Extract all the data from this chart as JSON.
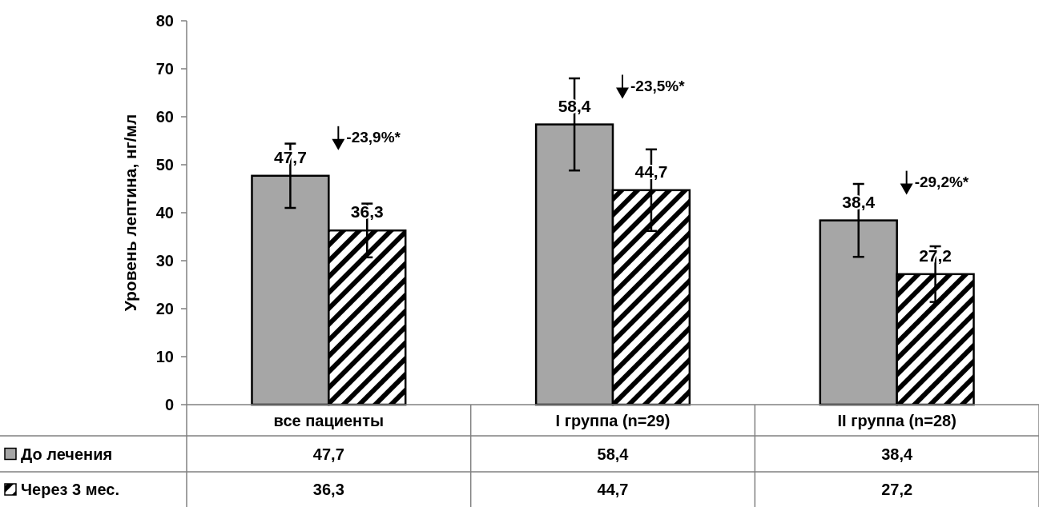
{
  "chart_data": {
    "type": "bar",
    "ylabel": "Уровень лептина, нг/мл",
    "categories": [
      "все пациенты",
      "I группа (n=29)",
      "II группа (n=28)"
    ],
    "series": [
      {
        "name": "До лечения",
        "color": "#a6a6a6",
        "values": [
          47.7,
          58.4,
          38.4
        ],
        "errors": [
          6.7,
          9.6,
          7.6
        ],
        "value_labels": [
          "47,7",
          "58,4",
          "38,4"
        ]
      },
      {
        "name": "Через 3 мес.",
        "color": "#000000",
        "values": [
          36.3,
          44.7,
          27.2
        ],
        "errors": [
          5.6,
          8.5,
          5.8
        ],
        "value_labels": [
          "36,3",
          "44,7",
          "27,2"
        ]
      }
    ],
    "ylim": [
      0,
      80
    ],
    "yticks": [
      0,
      10,
      20,
      30,
      40,
      50,
      60,
      70,
      80
    ],
    "legend": "bottom left",
    "annotations": [
      "-23,9%*",
      "-23,5%*",
      "-29,2%*"
    ]
  }
}
